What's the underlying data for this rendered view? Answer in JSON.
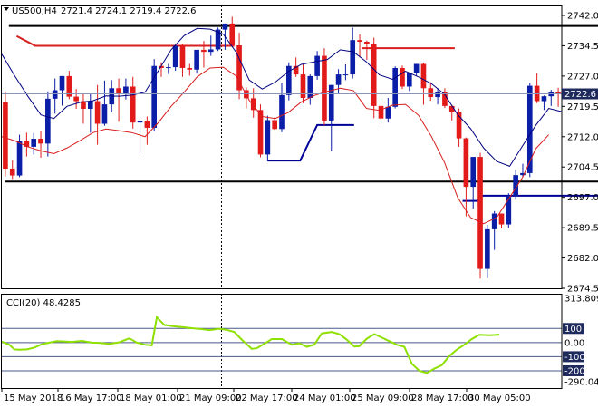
{
  "symbol_header": "US500,H4",
  "ohlc_header": "2721.4 2724.1 2719.4 2722.6",
  "current_price": "2722.6",
  "cci_header": "CCI(20) 48.4285",
  "colors": {
    "bull": "#0b1ea8",
    "bear": "#e21a1a",
    "fast_ma": "#000080",
    "slow_ma": "#d81e1e",
    "cci": "#8ee000",
    "support_resistance": "#000000",
    "price_marker_bg": "#1e2a5c"
  },
  "chart_data": [
    {
      "type": "candlestick",
      "price_axis": {
        "min": 2674.5,
        "max": 2742.0,
        "ticks": [
          "2742.0",
          "2734.5",
          "2727.0",
          "2719.5",
          "2712.0",
          "2704.5",
          "2697.0",
          "2689.5",
          "2682.0",
          "2674.5"
        ]
      },
      "time_axis": {
        "labels": [
          "15 May 2018",
          "16 May 17:00",
          "18 May 01:00",
          "21 May 09:00",
          "22 May 17:00",
          "24 May 01:00",
          "25 May 09:00",
          "28 May 17:00",
          "30 May 05:00"
        ]
      },
      "candles": [
        [
          2720.6,
          2723.2,
          2702.2,
          2704.1
        ],
        [
          2704.1,
          2706.2,
          2701.5,
          2702.4
        ],
        [
          2702.4,
          2712.5,
          2702.0,
          2711.0
        ],
        [
          2711.0,
          2713.0,
          2707.1,
          2709.5
        ],
        [
          2709.5,
          2712.9,
          2707.6,
          2711.5
        ],
        [
          2711.5,
          2713.5,
          2706.8,
          2710.3
        ],
        [
          2710.3,
          2723.2,
          2707.1,
          2721.4
        ],
        [
          2721.4,
          2726.4,
          2717.7,
          2723.5
        ],
        [
          2723.5,
          2727.0,
          2719.7,
          2727.0
        ],
        [
          2727.0,
          2728.3,
          2721.3,
          2721.9
        ],
        [
          2721.9,
          2723.8,
          2718.9,
          2720.8
        ],
        [
          2720.8,
          2722.5,
          2715.2,
          2718.9
        ],
        [
          2718.9,
          2722.5,
          2713.0,
          2720.8
        ],
        [
          2720.8,
          2724.8,
          2710.0,
          2715.2
        ],
        [
          2715.2,
          2725.9,
          2714.7,
          2720.0
        ],
        [
          2720.0,
          2726.0,
          2718.0,
          2724.0
        ],
        [
          2724.0,
          2726.4,
          2715.7,
          2722.5
        ],
        [
          2722.5,
          2726.4,
          2721.2,
          2724.4
        ],
        [
          2724.4,
          2726.8,
          2714.0,
          2715.5
        ],
        [
          2715.5,
          2716.0,
          2708.0,
          2715.9
        ],
        [
          2715.9,
          2717.0,
          2710.0,
          2714.2
        ],
        [
          2714.2,
          2731.2,
          2713.4,
          2729.5
        ],
        [
          2729.5,
          2730.4,
          2726.8,
          2729.0
        ],
        [
          2729.0,
          2730.0,
          2727.5,
          2729.2
        ],
        [
          2729.2,
          2734.5,
          2728.3,
          2734.5
        ],
        [
          2734.5,
          2735.0,
          2726.8,
          2729.0
        ],
        [
          2729.0,
          2730.0,
          2727.1,
          2728.6
        ],
        [
          2728.6,
          2733.2,
          2727.6,
          2733.5
        ],
        [
          2733.5,
          2735.7,
          2729.1,
          2733.0
        ],
        [
          2733.0,
          2737.0,
          2732.0,
          2733.6
        ],
        [
          2733.6,
          2739.0,
          2733.2,
          2738.5
        ],
        [
          2738.5,
          2740.0,
          2733.5,
          2740.0
        ],
        [
          2740.0,
          2741.7,
          2734.2,
          2734.6
        ],
        [
          2734.6,
          2737.7,
          2721.3,
          2723.5
        ],
        [
          2723.5,
          2724.2,
          2719.0,
          2721.5
        ],
        [
          2721.5,
          2724.0,
          2716.7,
          2718.6
        ],
        [
          2718.6,
          2720.0,
          2706.9,
          2707.6
        ],
        [
          2707.6,
          2717.2,
          2705.9,
          2716.1
        ],
        [
          2716.1,
          2716.8,
          2713.7,
          2713.9
        ],
        [
          2713.9,
          2725.3,
          2713.1,
          2722.3
        ],
        [
          2722.3,
          2730.4,
          2721.0,
          2729.5
        ],
        [
          2729.5,
          2731.6,
          2726.8,
          2727.4
        ],
        [
          2727.4,
          2729.9,
          2720.3,
          2721.6
        ],
        [
          2721.6,
          2727.4,
          2719.9,
          2727.0
        ],
        [
          2727.0,
          2733.2,
          2726.1,
          2732.0
        ],
        [
          2732.0,
          2733.9,
          2714.8,
          2716.0
        ],
        [
          2716.0,
          2724.8,
          2708.4,
          2724.8
        ],
        [
          2724.8,
          2728.7,
          2722.6,
          2727.4
        ],
        [
          2727.4,
          2729.9,
          2726.0,
          2727.4
        ],
        [
          2727.4,
          2739.0,
          2726.4,
          2735.9
        ],
        [
          2735.9,
          2737.3,
          2731.6,
          2735.5
        ],
        [
          2735.5,
          2735.8,
          2731.0,
          2735.0
        ],
        [
          2735.0,
          2736.5,
          2716.6,
          2719.6
        ],
        [
          2719.6,
          2721.6,
          2715.2,
          2716.5
        ],
        [
          2716.5,
          2721.6,
          2715.5,
          2719.4
        ],
        [
          2719.4,
          2729.4,
          2719.0,
          2729.0
        ],
        [
          2729.0,
          2729.6,
          2723.8,
          2724.4
        ],
        [
          2724.4,
          2727.9,
          2723.3,
          2727.8
        ],
        [
          2727.8,
          2730.0,
          2727.0,
          2730.0
        ],
        [
          2730.0,
          2730.3,
          2719.9,
          2724.0
        ],
        [
          2724.0,
          2725.5,
          2720.9,
          2721.8
        ],
        [
          2721.8,
          2724.0,
          2720.0,
          2723.0
        ],
        [
          2723.0,
          2724.0,
          2719.1,
          2719.6
        ],
        [
          2719.6,
          2719.9,
          2716.0,
          2718.2
        ],
        [
          2718.2,
          2719.0,
          2709.5,
          2711.6
        ],
        [
          2711.6,
          2711.8,
          2692.3,
          2699.6
        ],
        [
          2699.6,
          2707.0,
          2694.2,
          2707.0
        ],
        [
          2707.0,
          2708.0,
          2676.9,
          2679.3
        ],
        [
          2679.3,
          2690.2,
          2677.0,
          2689.1
        ],
        [
          2689.1,
          2693.6,
          2684.0,
          2693.0
        ],
        [
          2693.0,
          2693.0,
          2689.3,
          2690.3
        ],
        [
          2690.3,
          2698.0,
          2689.4,
          2697.4
        ],
        [
          2697.4,
          2703.7,
          2696.4,
          2702.5
        ],
        [
          2702.5,
          2705.3,
          2702.0,
          2703.0
        ],
        [
          2703.0,
          2725.3,
          2702.0,
          2724.6
        ],
        [
          2724.6,
          2727.7,
          2720.3,
          2720.8
        ],
        [
          2720.8,
          2722.2,
          2718.6,
          2722.0
        ],
        [
          2722.0,
          2723.6,
          2719.6,
          2723.0
        ],
        [
          2723.0,
          2724.1,
          2719.4,
          2722.6
        ]
      ],
      "fast_ma": [
        [
          0,
          2732.4
        ],
        [
          3,
          2727.0
        ],
        [
          6,
          2722.0
        ],
        [
          9,
          2717.4
        ],
        [
          12,
          2716.5
        ],
        [
          15,
          2719.5
        ],
        [
          18,
          2720.5
        ],
        [
          21,
          2720.9
        ],
        [
          24,
          2722.1
        ],
        [
          27,
          2722.0
        ],
        [
          30,
          2722.3
        ],
        [
          33,
          2723.0
        ],
        [
          36,
          2728.2
        ],
        [
          39,
          2733.5
        ],
        [
          42,
          2737.0
        ],
        [
          45,
          2738.8
        ],
        [
          48,
          2738.6
        ],
        [
          51,
          2737.4
        ],
        [
          54,
          2732.9
        ],
        [
          57,
          2726.0
        ],
        [
          60,
          2723.8
        ],
        [
          63,
          2725.5
        ],
        [
          66,
          2728.1
        ],
        [
          69,
          2729.9
        ],
        [
          72,
          2730.5
        ],
        [
          75,
          2731.1
        ],
        [
          78,
          2733.5
        ],
        [
          81,
          2733.0
        ],
        [
          84,
          2730.5
        ],
        [
          87,
          2727.3
        ],
        [
          90,
          2726.2
        ],
        [
          93,
          2728.2
        ],
        [
          96,
          2726.8
        ],
        [
          99,
          2725.1
        ],
        [
          102,
          2722.5
        ],
        [
          105,
          2717.5
        ],
        [
          108,
          2714.0
        ],
        [
          111,
          2709.2
        ],
        [
          114,
          2705.9
        ],
        [
          117,
          2704.7
        ],
        [
          120,
          2709.8
        ],
        [
          123,
          2714.8
        ],
        [
          126,
          2719.0
        ],
        [
          129,
          2718.2
        ]
      ],
      "slow_ma": [
        [
          0,
          2712.0
        ],
        [
          3,
          2711.0
        ],
        [
          6,
          2709.5
        ],
        [
          9,
          2708.5
        ],
        [
          12,
          2707.8
        ],
        [
          15,
          2709.2
        ],
        [
          18,
          2711.0
        ],
        [
          21,
          2713.0
        ],
        [
          24,
          2713.9
        ],
        [
          27,
          2713.5
        ],
        [
          30,
          2713.0
        ],
        [
          33,
          2712.0
        ],
        [
          36,
          2715.4
        ],
        [
          39,
          2719.5
        ],
        [
          42,
          2723.0
        ],
        [
          45,
          2726.8
        ],
        [
          48,
          2729.0
        ],
        [
          51,
          2729.2
        ],
        [
          54,
          2727.0
        ],
        [
          57,
          2721.0
        ],
        [
          60,
          2717.0
        ],
        [
          63,
          2716.5
        ],
        [
          66,
          2718.0
        ],
        [
          69,
          2720.6
        ],
        [
          72,
          2722.2
        ],
        [
          75,
          2723.2
        ],
        [
          78,
          2724.0
        ],
        [
          81,
          2723.4
        ],
        [
          84,
          2719.0
        ],
        [
          87,
          2718.5
        ],
        [
          90,
          2719.8
        ],
        [
          93,
          2720.0
        ],
        [
          96,
          2717.3
        ],
        [
          99,
          2712.0
        ],
        [
          102,
          2705.6
        ],
        [
          105,
          2697.0
        ],
        [
          108,
          2692.0
        ],
        [
          111,
          2690.5
        ],
        [
          114,
          2692.0
        ],
        [
          117,
          2697.0
        ],
        [
          120,
          2702.0
        ],
        [
          123,
          2709.0
        ],
        [
          126,
          2712.5
        ]
      ],
      "levels": [
        {
          "type": "h",
          "price": 2739.4,
          "from": 0.5,
          "to": 95.3,
          "color": "#000000"
        },
        {
          "type": "h",
          "price": 2700.9,
          "from": 0.0,
          "to": 95.6,
          "color": "#000000"
        },
        {
          "type": "poly",
          "color": "#d81e1e",
          "points": [
            [
              1.6,
              2736.9
            ],
            [
              4.2,
              2734.5
            ],
            [
              32.3,
              2734.5
            ]
          ]
        },
        {
          "type": "poly",
          "color": "#d81e1e",
          "points": [
            [
              50.3,
              2733.9
            ],
            [
              63.4,
              2733.9
            ]
          ]
        },
        {
          "type": "poly",
          "color": "#d81e1e",
          "points": [
            [
              85.2,
              2720.1
            ],
            [
              92.3,
              2720.1
            ]
          ]
        },
        {
          "type": "poly",
          "color": "#000099",
          "points": [
            [
              37.0,
              2706.1
            ],
            [
              41.6,
              2706.1
            ],
            [
              44.0,
              2714.9
            ],
            [
              49.2,
              2714.9
            ]
          ]
        },
        {
          "type": "poly",
          "color": "#000099",
          "points": [
            [
              64.5,
              2696.1
            ],
            [
              66.6,
              2696.1
            ],
            [
              67.0,
              2697.4
            ],
            [
              85.2,
              2697.4
            ]
          ]
        },
        {
          "type": "poly",
          "color": "#000099",
          "points": [
            [
              93.9,
              2677.2
            ],
            [
              97.5,
              2677.6
            ],
            [
              99.2,
              2679.9
            ]
          ]
        }
      ],
      "bid_line": 2722.6,
      "period_separators": [
        31,
        95
      ]
    },
    {
      "type": "line",
      "title": "CCI(20) 48.4285",
      "ylim": [
        -290.049,
        313.8092
      ],
      "levels": [
        100,
        0,
        -100,
        -200
      ],
      "tick_labels": [
        "313.8092",
        "100",
        "0.00",
        "-100",
        "-200",
        "-290.049"
      ],
      "series": [
        {
          "values": [
            [
              0,
              7
            ],
            [
              1.5,
              -15
            ],
            [
              2.5,
              -48
            ],
            [
              3.4,
              -51
            ],
            [
              5.0,
              -48
            ],
            [
              6.5,
              -36
            ],
            [
              8.0,
              -12
            ],
            [
              9.5,
              0
            ],
            [
              11.0,
              10
            ],
            [
              12.5,
              8
            ],
            [
              14.0,
              5
            ],
            [
              16.0,
              12
            ],
            [
              18.0,
              0
            ],
            [
              19.5,
              -2
            ],
            [
              21.5,
              -10
            ],
            [
              23.5,
              2
            ],
            [
              25.5,
              30
            ],
            [
              27.0,
              0
            ],
            [
              28.6,
              -15
            ],
            [
              30.0,
              -20
            ],
            [
              31.0,
              180
            ],
            [
              32.5,
              125
            ],
            [
              34.5,
              115
            ],
            [
              36.0,
              110
            ],
            [
              38.0,
              102
            ],
            [
              40.0,
              95
            ],
            [
              41.5,
              88
            ],
            [
              43.5,
              98
            ],
            [
              45.0,
              90
            ],
            [
              46.5,
              75
            ],
            [
              48.0,
              20
            ],
            [
              50.0,
              -45
            ],
            [
              51.0,
              -40
            ],
            [
              52.5,
              -8
            ],
            [
              54.0,
              25
            ],
            [
              56.0,
              25
            ],
            [
              58.0,
              -15
            ],
            [
              59.5,
              -5
            ],
            [
              61.0,
              -30
            ],
            [
              62.5,
              -15
            ],
            [
              64.0,
              65
            ],
            [
              66.0,
              75
            ],
            [
              67.5,
              60
            ],
            [
              69.0,
              20
            ],
            [
              70.5,
              -28
            ],
            [
              71.5,
              -25
            ],
            [
              73.0,
              28
            ],
            [
              74.5,
              60
            ],
            [
              76.0,
              35
            ],
            [
              77.5,
              10
            ],
            [
              79.0,
              -15
            ],
            [
              80.5,
              -30
            ],
            [
              82.0,
              -150
            ],
            [
              83.5,
              -200
            ],
            [
              85.0,
              -215
            ],
            [
              86.5,
              -185
            ],
            [
              88.0,
              -160
            ],
            [
              89.5,
              -95
            ],
            [
              91.0,
              -50
            ],
            [
              92.5,
              -15
            ],
            [
              94.0,
              25
            ],
            [
              95.5,
              55
            ],
            [
              97.5,
              52
            ],
            [
              99.5,
              56
            ]
          ]
        }
      ]
    }
  ]
}
